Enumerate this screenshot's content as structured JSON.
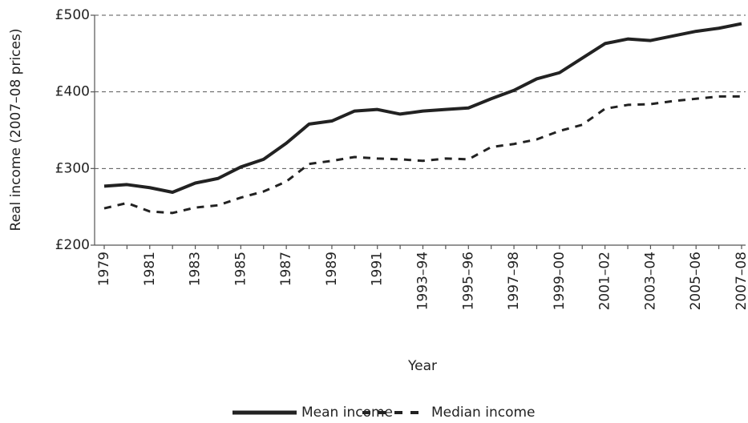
{
  "chart_data": {
    "type": "line",
    "y_label": "Real income (2007–08 prices)",
    "x_label": "Year",
    "categories": [
      "1979",
      null,
      "1981",
      null,
      "1983",
      null,
      "1985",
      null,
      "1987",
      null,
      "1989",
      null,
      "1991",
      null,
      "1993–94",
      null,
      "1995–96",
      null,
      "1997–98",
      null,
      "1999–00",
      null,
      "2001–02",
      null,
      "2003–04",
      null,
      "2005–06",
      null,
      "2007–08"
    ],
    "series": [
      {
        "name": "Mean income",
        "color": "#222222",
        "dash": false,
        "values": [
          277,
          279,
          275,
          269,
          281,
          287,
          302,
          312,
          333,
          358,
          362,
          375,
          377,
          371,
          375,
          377,
          379,
          391,
          402,
          417,
          425,
          444,
          463,
          469,
          467,
          473,
          479,
          483,
          489
        ]
      },
      {
        "name": "Median income",
        "color": "#222222",
        "dash": true,
        "values": [
          248,
          255,
          244,
          242,
          249,
          252,
          262,
          270,
          283,
          306,
          310,
          315,
          313,
          312,
          310,
          313,
          312,
          328,
          332,
          338,
          349,
          357,
          378,
          383,
          384,
          388,
          391,
          394,
          394
        ]
      }
    ],
    "ylim": [
      200,
      500
    ],
    "yticks": [
      {
        "value": 200,
        "label": "£200"
      },
      {
        "value": 300,
        "label": "£300"
      },
      {
        "value": 400,
        "label": "£400"
      },
      {
        "value": 500,
        "label": "£500"
      }
    ],
    "grid": true,
    "legend": "bottom"
  }
}
